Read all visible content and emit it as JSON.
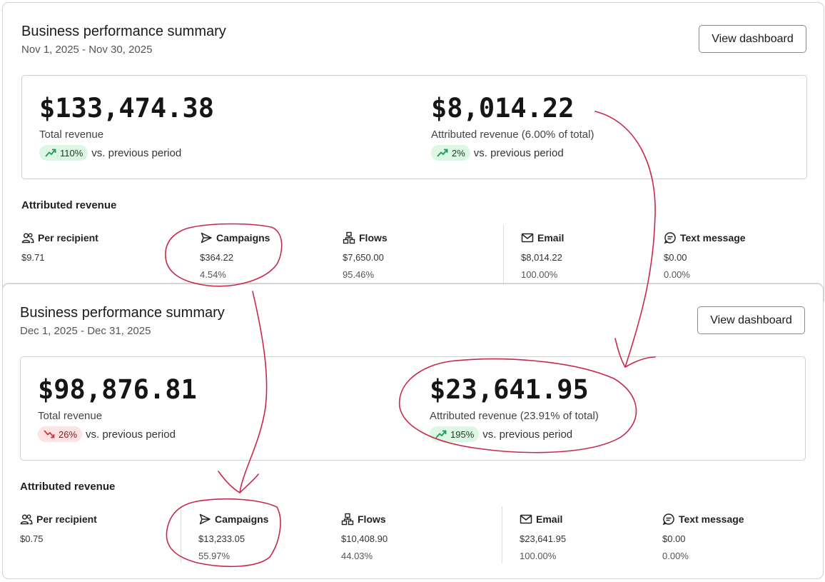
{
  "colors": {
    "accent_up": "#1f9d55",
    "accent_down": "#d23b3b",
    "annotation": "#c8284b"
  },
  "summaries": [
    {
      "title": "Business performance summary",
      "date_range": "Nov 1, 2025 - Nov 30, 2025",
      "view_button": "View dashboard",
      "total_revenue": {
        "value": "$133,474.38",
        "label": "Total revenue",
        "change": "110%",
        "trend": "up",
        "vs_text": "vs. previous period"
      },
      "attributed_revenue": {
        "value": "$8,014.22",
        "label": "Attributed revenue (6.00% of total)",
        "change": "2%",
        "trend": "up",
        "vs_text": "vs. previous period"
      },
      "section_title": "Attributed revenue",
      "breakdown": [
        {
          "icon": "users-icon",
          "label": "Per recipient",
          "value": "$9.71",
          "percent": ""
        },
        {
          "icon": "send-icon",
          "label": "Campaigns",
          "value": "$364.22",
          "percent": "4.54%"
        },
        {
          "icon": "flows-icon",
          "label": "Flows",
          "value": "$7,650.00",
          "percent": "95.46%"
        },
        {
          "icon": "mail-icon",
          "label": "Email",
          "value": "$8,014.22",
          "percent": "100.00%"
        },
        {
          "icon": "message-icon",
          "label": "Text message",
          "value": "$0.00",
          "percent": "0.00%"
        }
      ]
    },
    {
      "title": "Business performance summary",
      "date_range": "Dec 1, 2025 - Dec 31, 2025",
      "view_button": "View dashboard",
      "total_revenue": {
        "value": "$98,876.81",
        "label": "Total revenue",
        "change": "26%",
        "trend": "down",
        "vs_text": "vs. previous period"
      },
      "attributed_revenue": {
        "value": "$23,641.95",
        "label": "Attributed revenue (23.91% of total)",
        "change": "195%",
        "trend": "up",
        "vs_text": "vs. previous period"
      },
      "section_title": "Attributed revenue",
      "breakdown": [
        {
          "icon": "users-icon",
          "label": "Per recipient",
          "value": "$0.75",
          "percent": ""
        },
        {
          "icon": "send-icon",
          "label": "Campaigns",
          "value": "$13,233.05",
          "percent": "55.97%"
        },
        {
          "icon": "flows-icon",
          "label": "Flows",
          "value": "$10,408.90",
          "percent": "44.03%"
        },
        {
          "icon": "mail-icon",
          "label": "Email",
          "value": "$23,641.95",
          "percent": "100.00%"
        },
        {
          "icon": "message-icon",
          "label": "Text message",
          "value": "$0.00",
          "percent": "0.00%"
        }
      ]
    }
  ]
}
